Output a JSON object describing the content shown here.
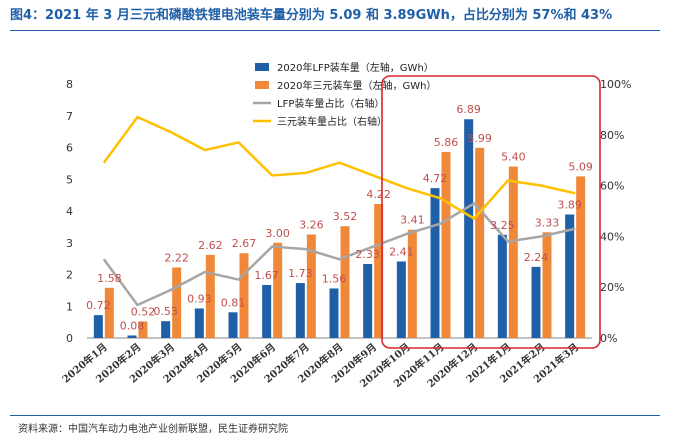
{
  "title": "图4：2021 年 3 月三元和磷酸铁锂电池装车量分别为 5.09 和 3.89GWh，占比分别为 57%和 43%",
  "source": "资料来源：中国汽车动力电池产业创新联盟，民生证券研究院",
  "chart_data": {
    "type": "bar",
    "categories": [
      "2020年1月",
      "2020年2月",
      "2020年3月",
      "2020年4月",
      "2020年5月",
      "2020年6月",
      "2020年7月",
      "2020年8月",
      "2020年9月",
      "2020年10月",
      "2020年11月",
      "2020年12月",
      "2021年1月",
      "2021年2月",
      "2021年3月"
    ],
    "series": [
      {
        "name": "2020年LFP装车量（左轴，GWh）",
        "type": "bar",
        "axis": "left",
        "color": "#1f5fa8",
        "values": [
          0.72,
          0.08,
          0.53,
          0.93,
          0.81,
          1.67,
          1.73,
          1.56,
          2.33,
          2.41,
          4.72,
          6.89,
          3.25,
          2.24,
          3.89
        ]
      },
      {
        "name": "2020年三元装车量（左轴，GWh）",
        "type": "bar",
        "axis": "left",
        "color": "#f0883a",
        "values": [
          1.58,
          0.52,
          2.22,
          2.62,
          2.67,
          3.0,
          3.26,
          3.52,
          4.22,
          3.41,
          5.86,
          5.99,
          5.4,
          3.33,
          5.09
        ]
      },
      {
        "name": "LFP装车量占比（右轴）",
        "type": "line",
        "axis": "right",
        "color": "#a6a6a6",
        "values": [
          31,
          13,
          19,
          26,
          23,
          36,
          35,
          31,
          36,
          41,
          45,
          53,
          38,
          40,
          43
        ]
      },
      {
        "name": "三元装车量占比（右轴）",
        "type": "line",
        "axis": "right",
        "color": "#ffc000",
        "values": [
          69,
          87,
          81,
          74,
          77,
          64,
          65,
          69,
          64,
          59,
          55,
          47,
          62,
          60,
          57
        ]
      }
    ],
    "left_axis": {
      "min": 0,
      "max": 8,
      "ticks": [
        "0",
        "1",
        "2",
        "3",
        "4",
        "5",
        "6",
        "7",
        "8"
      ]
    },
    "right_axis": {
      "min": 0,
      "max": 100,
      "ticks": [
        "0%",
        "20%",
        "40%",
        "60%",
        "80%",
        "100%"
      ]
    },
    "highlight": {
      "from": "2020年10月",
      "to": "2021年3月",
      "color": "#d9262b"
    },
    "legend_position": "top-right"
  }
}
